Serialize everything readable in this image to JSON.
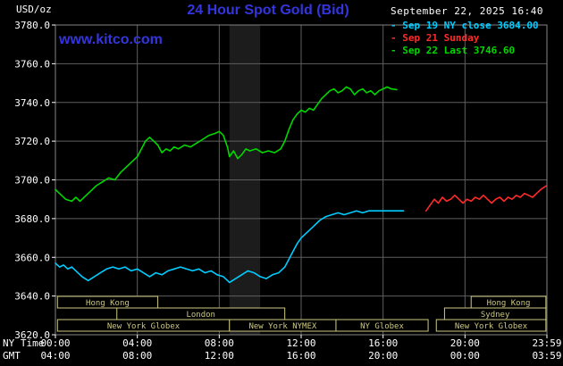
{
  "header": {
    "units_label": "USD/oz",
    "title": "24 Hour Spot Gold (Bid)",
    "datetime": "September 22, 2025 16:40",
    "watermark": "www.kitco.com",
    "legend_bullet": "-",
    "legend": [
      {
        "label": "Sep 19 NY close 3684.00",
        "color": "#00ccff"
      },
      {
        "label": "Sep 21 Sunday",
        "color": "#ff2a2a"
      },
      {
        "label": "Sep 22 Last 3746.60",
        "color": "#00d800"
      }
    ]
  },
  "colors": {
    "title_blue": "#3535dd",
    "axis_text": "#ffffff",
    "grid": "#5f5f5f",
    "plot_border": "#848484",
    "session": "#ccc882",
    "background": "#000000"
  },
  "axes": {
    "x_ny_label": "NY Time",
    "x_gmt_label": "GMT",
    "x_tick_hours": [
      0,
      4,
      8,
      12,
      16,
      20,
      24
    ],
    "x_ny_ticks": [
      "00:00",
      "04:00",
      "08:00",
      "12:00",
      "16:00",
      "20:00",
      "23:59"
    ],
    "x_gmt_ticks": [
      "04:00",
      "08:00",
      "12:00",
      "16:00",
      "20:00",
      "00:00",
      "03:59"
    ],
    "y_ticks": [
      "3780.0",
      "3760.0",
      "3740.0",
      "3720.0",
      "3700.0",
      "3680.0",
      "3660.0",
      "3640.0",
      "3620.0"
    ]
  },
  "chart_data": {
    "type": "line",
    "title": "24 Hour Spot Gold (Bid)",
    "xlabel": "NY Time (hours)",
    "ylabel": "USD/oz",
    "xlim_hours": [
      0,
      24
    ],
    "ylim": [
      3620,
      3780
    ],
    "grid": true,
    "legend_position": "top-right",
    "shaded_region": {
      "start": 8.5,
      "end": 10.0,
      "color": "#1c1c1c"
    },
    "sessions": [
      {
        "label": "Hong Kong",
        "row": 0,
        "start": 0.1,
        "end": 5.0
      },
      {
        "label": "Hong Kong",
        "row": 0,
        "start": 20.3,
        "end": 23.95
      },
      {
        "label": "London",
        "row": 1,
        "start": 3.0,
        "end": 11.2
      },
      {
        "label": "Sydney",
        "row": 1,
        "start": 19.0,
        "end": 23.95
      },
      {
        "label": "New York Globex",
        "row": 2,
        "start": 0.1,
        "end": 8.5
      },
      {
        "label": "New York NYMEX",
        "row": 2,
        "start": 8.5,
        "end": 13.7
      },
      {
        "label": "NY Globex",
        "row": 2,
        "start": 13.7,
        "end": 18.2
      },
      {
        "label": "New York Globex",
        "row": 2,
        "start": 18.6,
        "end": 23.95
      }
    ],
    "series": [
      {
        "name": "Sep 19 NY close 3684.00",
        "color": "#00ccff",
        "points": [
          [
            0,
            3657
          ],
          [
            0.2,
            3655
          ],
          [
            0.4,
            3656
          ],
          [
            0.6,
            3654
          ],
          [
            0.8,
            3655
          ],
          [
            1.0,
            3653
          ],
          [
            1.3,
            3650
          ],
          [
            1.6,
            3648
          ],
          [
            1.9,
            3650
          ],
          [
            2.2,
            3652
          ],
          [
            2.5,
            3654
          ],
          [
            2.8,
            3655
          ],
          [
            3.1,
            3654
          ],
          [
            3.4,
            3655
          ],
          [
            3.7,
            3653
          ],
          [
            4.0,
            3654
          ],
          [
            4.3,
            3652
          ],
          [
            4.6,
            3650
          ],
          [
            4.9,
            3652
          ],
          [
            5.2,
            3651
          ],
          [
            5.5,
            3653
          ],
          [
            5.8,
            3654
          ],
          [
            6.1,
            3655
          ],
          [
            6.4,
            3654
          ],
          [
            6.7,
            3653
          ],
          [
            7.0,
            3654
          ],
          [
            7.3,
            3652
          ],
          [
            7.6,
            3653
          ],
          [
            7.9,
            3651
          ],
          [
            8.2,
            3650
          ],
          [
            8.5,
            3647
          ],
          [
            8.8,
            3649
          ],
          [
            9.1,
            3651
          ],
          [
            9.4,
            3653
          ],
          [
            9.7,
            3652
          ],
          [
            10.0,
            3650
          ],
          [
            10.3,
            3649
          ],
          [
            10.6,
            3651
          ],
          [
            10.9,
            3652
          ],
          [
            11.2,
            3655
          ],
          [
            11.4,
            3659
          ],
          [
            11.6,
            3663
          ],
          [
            11.8,
            3667
          ],
          [
            12.0,
            3670
          ],
          [
            12.3,
            3673
          ],
          [
            12.6,
            3676
          ],
          [
            12.9,
            3679
          ],
          [
            13.2,
            3681
          ],
          [
            13.5,
            3682
          ],
          [
            13.8,
            3683
          ],
          [
            14.1,
            3682
          ],
          [
            14.4,
            3683
          ],
          [
            14.7,
            3684
          ],
          [
            15.0,
            3683
          ],
          [
            15.3,
            3684
          ],
          [
            15.6,
            3684
          ],
          [
            16.0,
            3684
          ],
          [
            16.5,
            3684
          ],
          [
            17.0,
            3684
          ]
        ]
      },
      {
        "name": "Sep 21 Sunday",
        "color": "#ff2a2a",
        "points": [
          [
            18.1,
            3684
          ],
          [
            18.3,
            3687
          ],
          [
            18.5,
            3690
          ],
          [
            18.7,
            3688
          ],
          [
            18.9,
            3691
          ],
          [
            19.1,
            3689
          ],
          [
            19.3,
            3690
          ],
          [
            19.5,
            3692
          ],
          [
            19.7,
            3690
          ],
          [
            19.9,
            3688
          ],
          [
            20.1,
            3690
          ],
          [
            20.3,
            3689
          ],
          [
            20.5,
            3691
          ],
          [
            20.7,
            3690
          ],
          [
            20.9,
            3692
          ],
          [
            21.1,
            3690
          ],
          [
            21.3,
            3688
          ],
          [
            21.5,
            3690
          ],
          [
            21.7,
            3691
          ],
          [
            21.9,
            3689
          ],
          [
            22.1,
            3691
          ],
          [
            22.3,
            3690
          ],
          [
            22.5,
            3692
          ],
          [
            22.7,
            3691
          ],
          [
            22.9,
            3693
          ],
          [
            23.1,
            3692
          ],
          [
            23.3,
            3691
          ],
          [
            23.5,
            3693
          ],
          [
            23.7,
            3695
          ],
          [
            23.98,
            3697
          ]
        ]
      },
      {
        "name": "Sep 22 Last 3746.60",
        "color": "#00d800",
        "points": [
          [
            0,
            3695
          ],
          [
            0.2,
            3693
          ],
          [
            0.5,
            3690
          ],
          [
            0.8,
            3689
          ],
          [
            1.0,
            3691
          ],
          [
            1.2,
            3689
          ],
          [
            1.5,
            3692
          ],
          [
            1.8,
            3695
          ],
          [
            2.0,
            3697
          ],
          [
            2.3,
            3699
          ],
          [
            2.6,
            3701
          ],
          [
            2.9,
            3700
          ],
          [
            3.2,
            3704
          ],
          [
            3.5,
            3707
          ],
          [
            3.8,
            3710
          ],
          [
            4.0,
            3712
          ],
          [
            4.2,
            3716
          ],
          [
            4.4,
            3720
          ],
          [
            4.6,
            3722
          ],
          [
            4.8,
            3720
          ],
          [
            5.0,
            3718
          ],
          [
            5.2,
            3714
          ],
          [
            5.4,
            3716
          ],
          [
            5.6,
            3715
          ],
          [
            5.8,
            3717
          ],
          [
            6.0,
            3716
          ],
          [
            6.3,
            3718
          ],
          [
            6.6,
            3717
          ],
          [
            6.9,
            3719
          ],
          [
            7.2,
            3721
          ],
          [
            7.5,
            3723
          ],
          [
            7.8,
            3724
          ],
          [
            8.0,
            3725
          ],
          [
            8.2,
            3723
          ],
          [
            8.4,
            3717
          ],
          [
            8.5,
            3712
          ],
          [
            8.7,
            3715
          ],
          [
            8.9,
            3711
          ],
          [
            9.1,
            3713
          ],
          [
            9.3,
            3716
          ],
          [
            9.5,
            3715
          ],
          [
            9.8,
            3716
          ],
          [
            10.1,
            3714
          ],
          [
            10.4,
            3715
          ],
          [
            10.7,
            3714
          ],
          [
            11.0,
            3716
          ],
          [
            11.2,
            3720
          ],
          [
            11.4,
            3726
          ],
          [
            11.6,
            3731
          ],
          [
            11.8,
            3734
          ],
          [
            12.0,
            3736
          ],
          [
            12.2,
            3735
          ],
          [
            12.4,
            3737
          ],
          [
            12.6,
            3736
          ],
          [
            12.8,
            3739
          ],
          [
            13.0,
            3742
          ],
          [
            13.2,
            3744
          ],
          [
            13.4,
            3746
          ],
          [
            13.6,
            3747
          ],
          [
            13.8,
            3745
          ],
          [
            14.0,
            3746
          ],
          [
            14.2,
            3748
          ],
          [
            14.4,
            3747
          ],
          [
            14.6,
            3744
          ],
          [
            14.8,
            3746
          ],
          [
            15.0,
            3747
          ],
          [
            15.2,
            3745
          ],
          [
            15.4,
            3746
          ],
          [
            15.6,
            3744
          ],
          [
            15.8,
            3746
          ],
          [
            16.0,
            3747
          ],
          [
            16.2,
            3748
          ],
          [
            16.4,
            3747
          ],
          [
            16.67,
            3746.6
          ]
        ]
      }
    ]
  }
}
